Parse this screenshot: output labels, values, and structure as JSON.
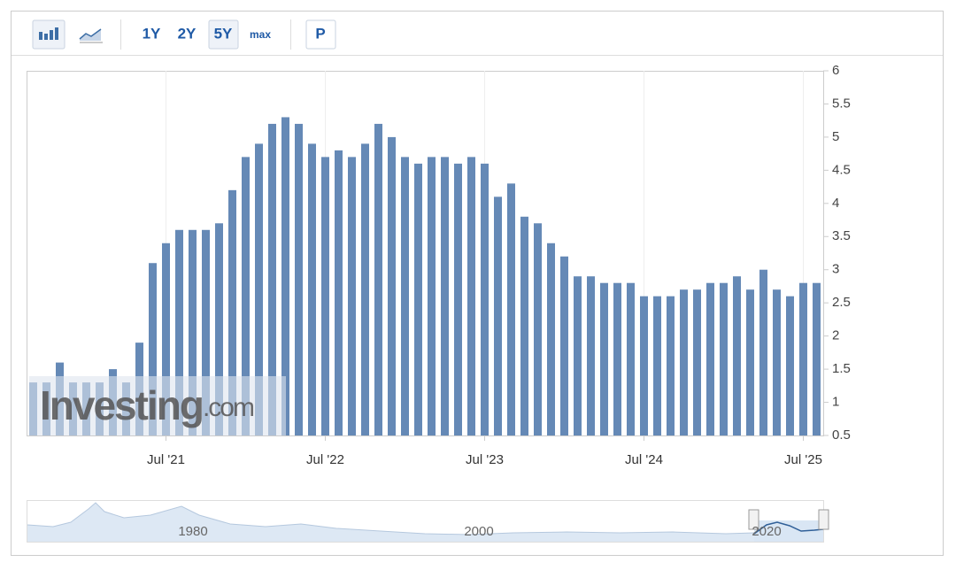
{
  "toolbar": {
    "ranges": [
      "1Y",
      "2Y",
      "5Y",
      "max"
    ],
    "p_button": "P"
  },
  "watermark": {
    "brand": "Investing",
    "suffix": ".com"
  },
  "navigator": {
    "labels": [
      "1980",
      "2000",
      "2020"
    ]
  },
  "chart_data": {
    "type": "bar",
    "color": "#6589b6",
    "grid": "x",
    "y_axis_side": "right",
    "categories": [
      null,
      null,
      null,
      null,
      null,
      null,
      null,
      null,
      null,
      null,
      "Jul '21",
      null,
      null,
      null,
      null,
      null,
      null,
      null,
      null,
      null,
      null,
      null,
      "Jul '22",
      null,
      null,
      null,
      null,
      null,
      null,
      null,
      null,
      null,
      null,
      null,
      "Jul '23",
      null,
      null,
      null,
      null,
      null,
      null,
      null,
      null,
      null,
      null,
      null,
      "Jul '24",
      null,
      null,
      null,
      null,
      null,
      null,
      null,
      null,
      null,
      null,
      null,
      "Jul '25",
      null
    ],
    "values": [
      1.3,
      1.3,
      1.6,
      1.3,
      1.3,
      1.3,
      1.5,
      1.3,
      1.9,
      3.1,
      3.4,
      3.6,
      3.6,
      3.6,
      3.7,
      4.2,
      4.7,
      4.9,
      5.2,
      5.3,
      5.2,
      4.9,
      4.7,
      4.8,
      4.7,
      4.9,
      5.2,
      5.0,
      4.7,
      4.6,
      4.7,
      4.7,
      4.6,
      4.7,
      4.6,
      4.1,
      4.3,
      3.8,
      3.7,
      3.4,
      3.2,
      2.9,
      2.9,
      2.8,
      2.8,
      2.8,
      2.6,
      2.6,
      2.6,
      2.7,
      2.7,
      2.8,
      2.8,
      2.9,
      2.7,
      3.0,
      2.7,
      2.6,
      2.8,
      2.8
    ],
    "ylim": [
      0.5,
      6
    ],
    "yticks": [
      0.5,
      1,
      1.5,
      2,
      2.5,
      3,
      3.5,
      4,
      4.5,
      5,
      5.5,
      6
    ]
  }
}
